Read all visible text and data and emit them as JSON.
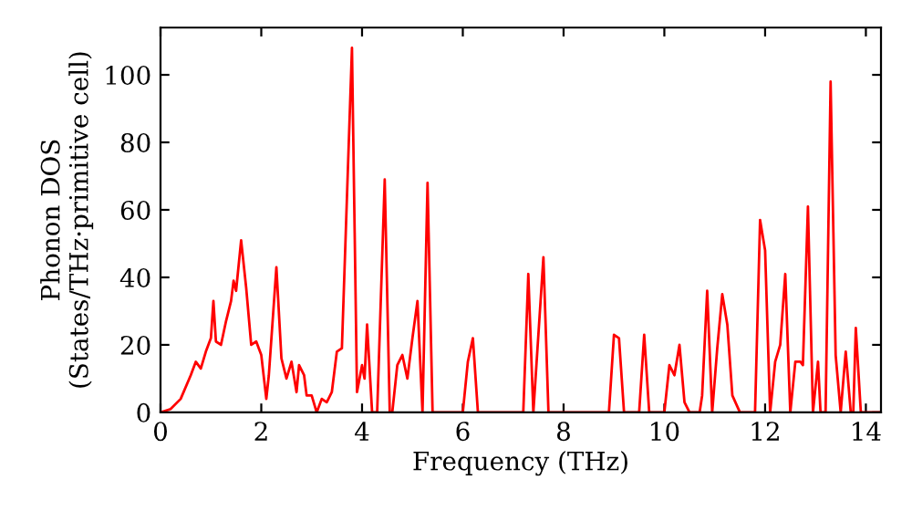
{
  "chart_data": {
    "type": "line",
    "xlabel": "Frequency (THz)",
    "ylabel": "Phonon DOS\n(States/THz·primitive cell)",
    "xlim": [
      0,
      14.3
    ],
    "ylim": [
      0,
      114
    ],
    "xticks": [
      0,
      2,
      4,
      6,
      8,
      10,
      12,
      14
    ],
    "yticks": [
      0,
      20,
      40,
      60,
      80,
      100
    ],
    "grid": false,
    "marker": "none",
    "line_style": "solid",
    "series": [
      {
        "color": "#ff0000",
        "x": [
          0,
          0.2,
          0.4,
          0.6,
          0.7,
          0.8,
          0.9,
          1.0,
          1.05,
          1.1,
          1.2,
          1.3,
          1.4,
          1.45,
          1.5,
          1.6,
          1.7,
          1.8,
          1.9,
          2.0,
          2.1,
          2.15,
          2.3,
          2.4,
          2.5,
          2.6,
          2.7,
          2.75,
          2.85,
          2.9,
          3.0,
          3.1,
          3.2,
          3.3,
          3.4,
          3.5,
          3.6,
          3.8,
          3.9,
          4.0,
          4.05,
          4.1,
          4.2,
          4.3,
          4.45,
          4.55,
          4.6,
          4.7,
          4.8,
          4.9,
          5.0,
          5.1,
          5.2,
          5.3,
          5.4,
          6.0,
          6.1,
          6.2,
          6.3,
          7.2,
          7.3,
          7.4,
          7.6,
          7.7,
          8.9,
          9.0,
          9.1,
          9.2,
          9.5,
          9.6,
          9.7,
          10.0,
          10.1,
          10.2,
          10.3,
          10.4,
          10.5,
          10.7,
          10.75,
          10.85,
          10.95,
          11.05,
          11.15,
          11.25,
          11.35,
          11.5,
          11.8,
          11.9,
          12.0,
          12.1,
          12.2,
          12.3,
          12.4,
          12.5,
          12.6,
          12.7,
          12.75,
          12.85,
          12.95,
          13.05,
          13.1,
          13.2,
          13.3,
          13.4,
          13.5,
          13.6,
          13.7,
          13.75,
          13.8,
          13.9,
          14.3
        ],
        "values": [
          0,
          1,
          4,
          11,
          15,
          13,
          18,
          22,
          33,
          21,
          20,
          27,
          33,
          39,
          36,
          51,
          37,
          20,
          21,
          17,
          4,
          11,
          43,
          16,
          10,
          15,
          6,
          14,
          11,
          5,
          5,
          0,
          4,
          3,
          6,
          18,
          19,
          108,
          6,
          14,
          10,
          26,
          0,
          0,
          69,
          0,
          0,
          14,
          17,
          10,
          22,
          33,
          0,
          68,
          0,
          0,
          15,
          22,
          0,
          0,
          41,
          0,
          46,
          0,
          0,
          23,
          22,
          0,
          0,
          23,
          0,
          0,
          14,
          11,
          20,
          3,
          0,
          0,
          5,
          36,
          0,
          19,
          35,
          26,
          5,
          0,
          0,
          57,
          48,
          0,
          15,
          20,
          41,
          0,
          15,
          15,
          14,
          61,
          0,
          15,
          0,
          0,
          98,
          17,
          0,
          18,
          0,
          0,
          25,
          0,
          0
        ]
      }
    ]
  }
}
